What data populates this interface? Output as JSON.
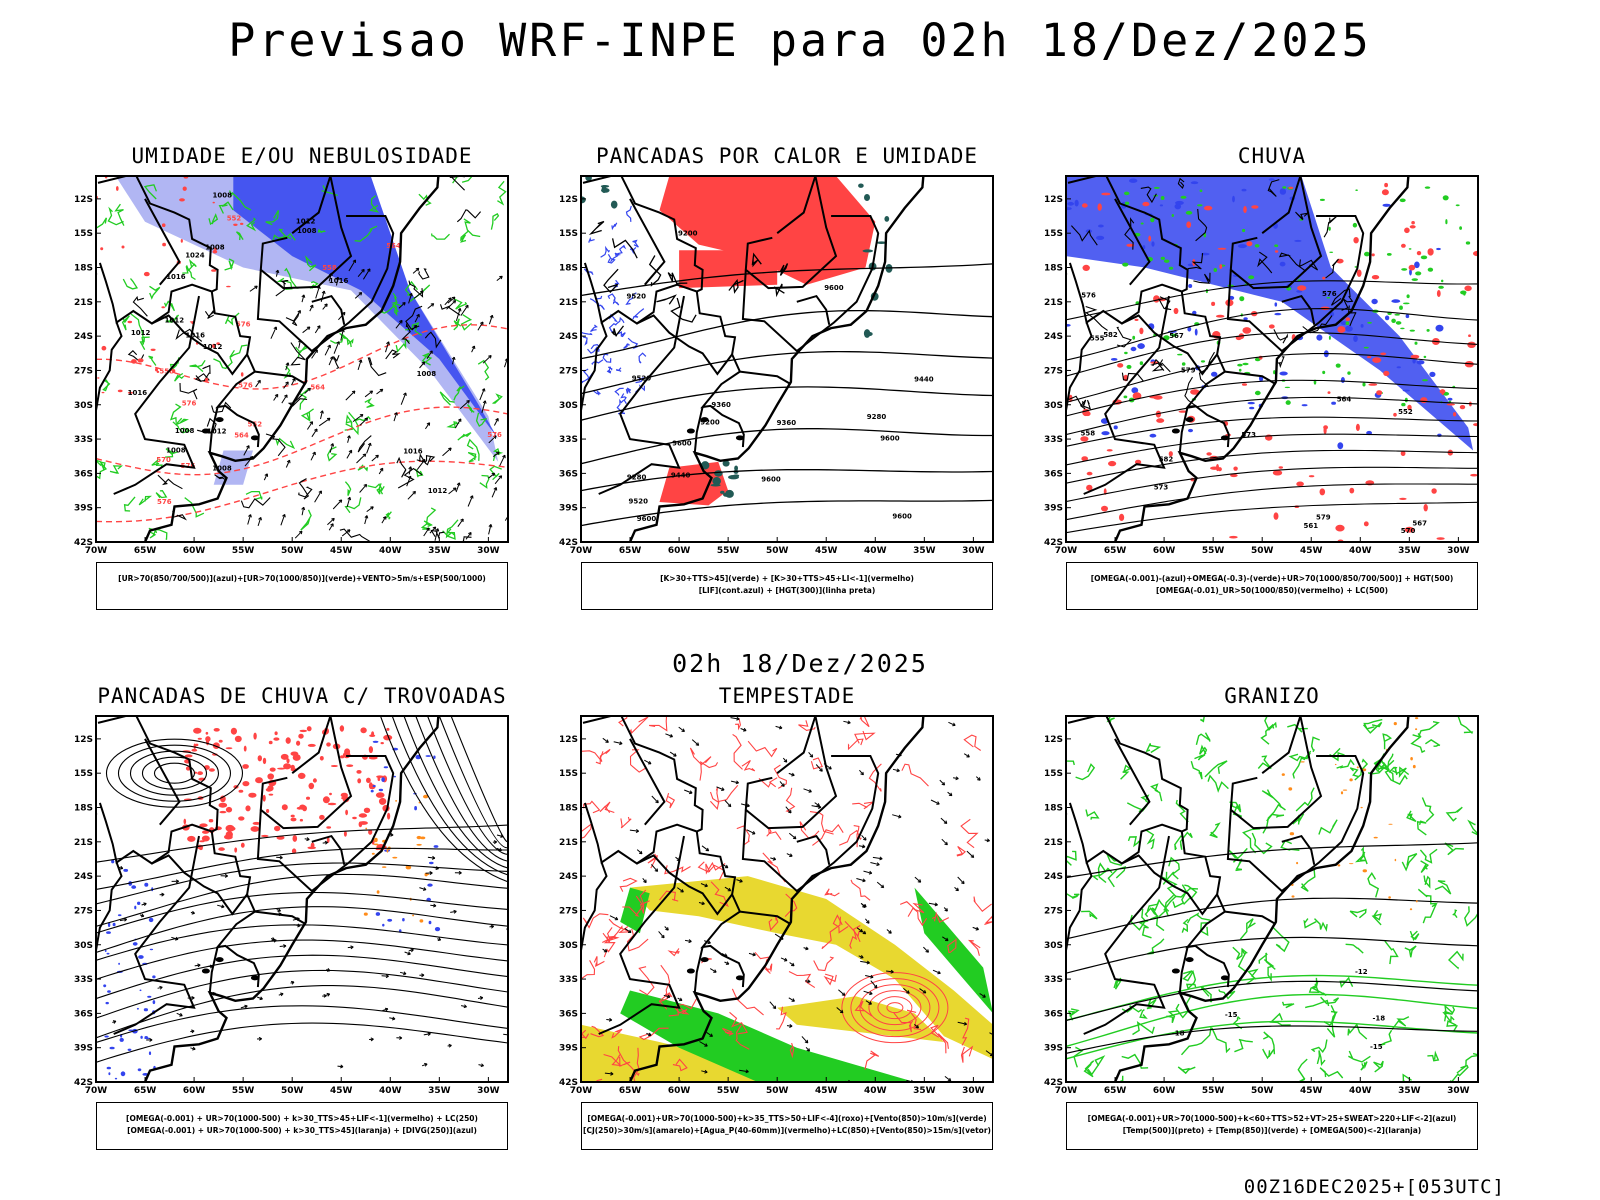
{
  "title": "Previsao WRF-INPE  para 02h 18/Dez/2025",
  "middle_time": "02h 18/Dez/2025",
  "footer": "00Z16DEC2025+[053UTC]",
  "colors": {
    "blue": "#3344ee",
    "lavender": "#a9aef2",
    "green": "#22cc22",
    "red": "#ff4444",
    "teal": "#225a55",
    "yellow": "#e8d830",
    "orange": "#ff8c1a",
    "black": "#000000"
  },
  "axes": {
    "x_ticks": [
      "70W",
      "65W",
      "60W",
      "55W",
      "50W",
      "45W",
      "40W",
      "35W",
      "30W"
    ],
    "y_ticks": [
      "12S",
      "15S",
      "18S",
      "21S",
      "24S",
      "27S",
      "30S",
      "33S",
      "36S",
      "39S",
      "42S"
    ],
    "lon_range": [
      -70,
      -28
    ],
    "lat_range": [
      -42,
      -10
    ]
  },
  "chart_data": [
    {
      "type": "map",
      "id": "umidade",
      "title": "UMIDADE E/OU NEBULOSIDADE",
      "legend": [
        "[UR>70(850/700/500)](azul)+[UR>70(1000/850)](verde)+VENTO>5m/s+ESP(500/1000)"
      ],
      "contour_labels": [
        "1008",
        "1008",
        "1008",
        "1008",
        "1008",
        "1008",
        "1012",
        "1012",
        "1012",
        "1012",
        "1016",
        "1016",
        "1016",
        "1016",
        "1012",
        "1024",
        "1016",
        "1012",
        "1008",
        "576",
        "576",
        "576",
        "576",
        "576",
        "564",
        "564",
        "558",
        "552",
        "558",
        "564",
        "570",
        "576",
        "552"
      ]
    },
    {
      "type": "map",
      "id": "pancadas-calor",
      "title": "PANCADAS POR CALOR E UMIDADE",
      "legend": [
        "[K>30+TTS>45](verde) + [K>30+TTS>45+LI<-1](vermelho)",
        "[LIF](cont.azul) + [HGT(300)](linha preta)"
      ],
      "contour_labels": [
        "9600",
        "9600",
        "9600",
        "9520",
        "9600",
        "9600",
        "9520",
        "9520",
        "9440",
        "9440",
        "9360",
        "9360",
        "9280",
        "9280",
        "9200",
        "9200",
        "9600"
      ]
    },
    {
      "type": "map",
      "id": "chuva",
      "title": "CHUVA",
      "legend": [
        "[OMEGA(-0.001)-(azul)+OMEGA(-0.3)-(verde)+UR>70(1000/850/700/500)] + HGT(500)",
        "[OMEGA(-0.01)_UR>50(1000/850)(vermelho) + LC(500)"
      ],
      "contour_labels": [
        "582",
        "582",
        "579",
        "576",
        "573",
        "573",
        "570",
        "567",
        "564",
        "561",
        "558",
        "555",
        "552",
        "567",
        "576",
        "579"
      ]
    },
    {
      "type": "map",
      "id": "trovoadas",
      "title": "PANCADAS DE CHUVA C/ TROVOADAS",
      "legend": [
        "[OMEGA(-0.001) + UR>70(1000-500) + k>30_TTS>45+LIF<-1](vermelho) + LC(250)",
        "[OMEGA(-0.001) + UR>70(1000-500) + k>30_TTS>45](laranja) + [DIVG(250)](azul)"
      ],
      "contour_labels": []
    },
    {
      "type": "map",
      "id": "tempestade",
      "title": "TEMPESTADE",
      "legend": [
        "[OMEGA(-0.001)+UR>70(1000-500)+k>35_TTS>50+LIF<-4](roxo)+[Vento(850)>10m/s](verde)",
        "[CJ(250)>30m/s](amarelo)+[Agua_P(40-60mm)](vermelho)+LC(850)+[Vento(850)>15m/s](vetor)"
      ],
      "contour_labels": []
    },
    {
      "type": "map",
      "id": "granizo",
      "title": "GRANIZO",
      "legend": [
        "[OMEGA(-0.001)+UR>70(1000-500)+k<60+TTS>52+VT>25+SWEAT>220+LIF<-2](azul)",
        "[Temp(500)](preto) + [Temp(850)](verde) + [OMEGA(500)<-2](laranja)"
      ],
      "contour_labels": [
        "-12",
        "-15",
        "-15",
        "-18",
        "-18"
      ]
    }
  ]
}
